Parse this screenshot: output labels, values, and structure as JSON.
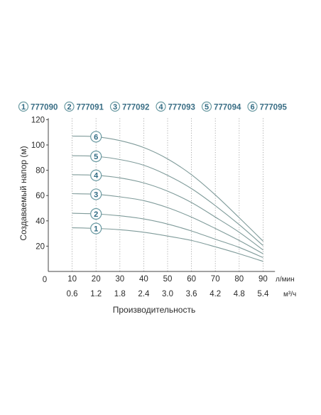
{
  "chart_data": {
    "type": "line",
    "legend": [
      {
        "num": "1",
        "model": "777090"
      },
      {
        "num": "2",
        "model": "777091"
      },
      {
        "num": "3",
        "model": "777092"
      },
      {
        "num": "4",
        "model": "777093"
      },
      {
        "num": "5",
        "model": "777094"
      },
      {
        "num": "6",
        "model": "777095"
      }
    ],
    "ylabel": "Создаваемый напор (м)",
    "xlabel": "Производительность",
    "x_unit_primary": "л/мин",
    "x_unit_secondary": "м³/ч",
    "ylim": [
      0,
      120
    ],
    "xlim": [
      0,
      95
    ],
    "y_ticks": [
      "20",
      "40",
      "60",
      "80",
      "100",
      "120"
    ],
    "y_zero_label": "0",
    "x_ticks_primary": [
      "10",
      "20",
      "30",
      "40",
      "50",
      "60",
      "70",
      "80",
      "90"
    ],
    "x_ticks_secondary": [
      "0.6",
      "1.2",
      "1.8",
      "2.4",
      "3.0",
      "3.6",
      "4.2",
      "4.8",
      "5.4"
    ],
    "grid": "vertical dotted",
    "series": [
      {
        "label": "1",
        "x": [
          10,
          20,
          30,
          40,
          50,
          60,
          70,
          80,
          90
        ],
        "y": [
          34.5,
          34,
          33,
          31,
          28,
          24.5,
          19.5,
          14,
          8
        ]
      },
      {
        "label": "2",
        "x": [
          10,
          20,
          30,
          40,
          50,
          60,
          70,
          80,
          90
        ],
        "y": [
          46,
          45.5,
          44,
          41.5,
          37.5,
          32,
          25.5,
          19,
          11
        ]
      },
      {
        "label": "3",
        "x": [
          10,
          20,
          30,
          40,
          50,
          60,
          70,
          80,
          90
        ],
        "y": [
          61.5,
          61,
          59,
          56,
          50.5,
          43,
          34,
          24.5,
          14
        ]
      },
      {
        "label": "4",
        "x": [
          10,
          20,
          30,
          40,
          50,
          60,
          70,
          80,
          90
        ],
        "y": [
          76.5,
          76,
          74,
          70,
          63.5,
          54.5,
          43,
          31,
          17
        ]
      },
      {
        "label": "5",
        "x": [
          10,
          20,
          30,
          40,
          50,
          60,
          70,
          80,
          90
        ],
        "y": [
          91.5,
          91,
          88.5,
          84,
          76,
          65.5,
          52,
          37,
          20.5
        ]
      },
      {
        "label": "6",
        "x": [
          10,
          20,
          30,
          40,
          50,
          60,
          70,
          80,
          90
        ],
        "y": [
          107,
          106.5,
          103.5,
          98,
          89,
          76.5,
          60.5,
          42.5,
          24
        ]
      }
    ],
    "badge_x": 20,
    "colors": {
      "curve": "#7f9b9a",
      "badge_stroke": "#6a9aa2",
      "badge_text": "#2f6a82",
      "grid": "#9a9a9a",
      "axis": "#444444"
    }
  }
}
